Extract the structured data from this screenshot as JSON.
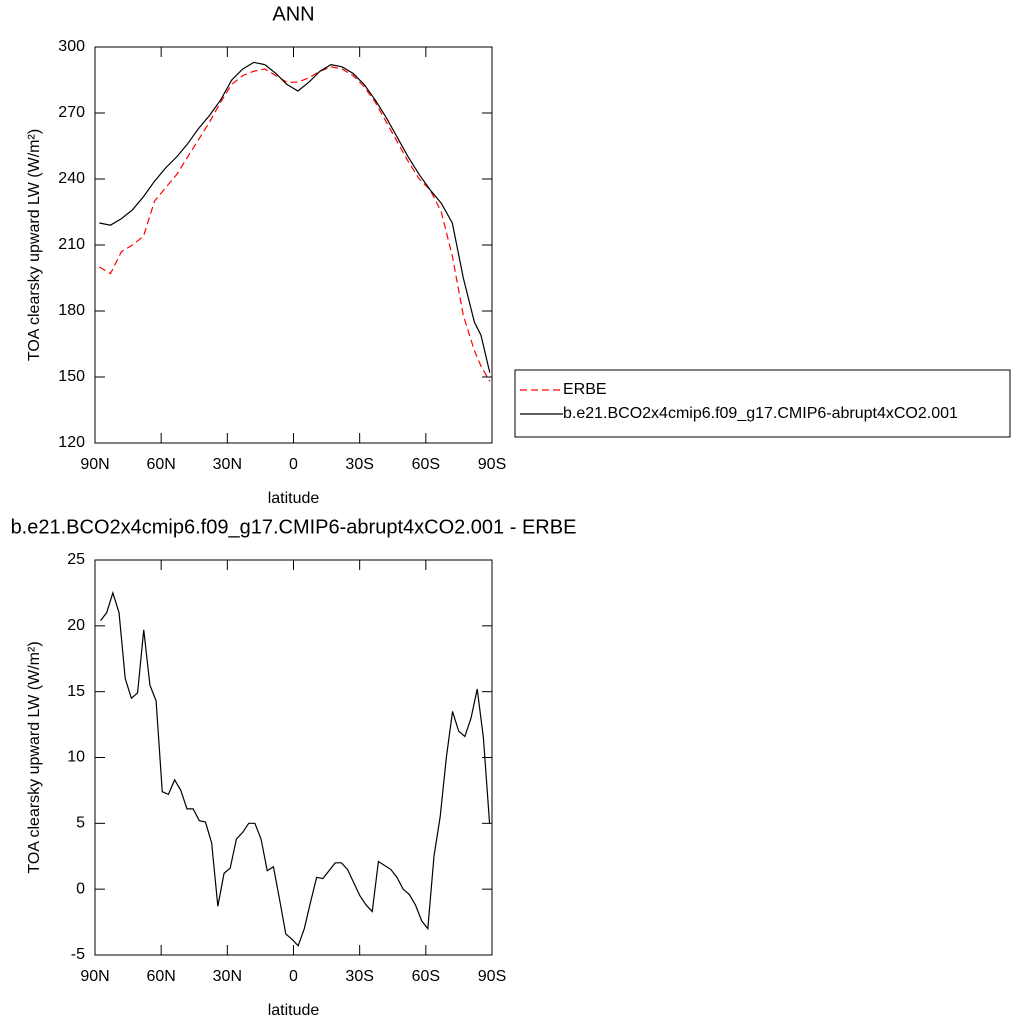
{
  "chart_data": [
    {
      "type": "line",
      "title": "ANN",
      "x_label": "latitude",
      "y_label": "TOA clearsky upward LW (W/m²)",
      "x": [
        88,
        83,
        78,
        73,
        68,
        63,
        58,
        53,
        48,
        43,
        38,
        33,
        28,
        23,
        18,
        13,
        8,
        3,
        -2,
        -7,
        -12,
        -17,
        -22,
        -27,
        -32,
        -37,
        -42,
        -47,
        -52,
        -57,
        -62,
        -67,
        -72,
        -77,
        -82,
        -85,
        -89
      ],
      "series": [
        {
          "name": "ERBE",
          "color": "#ff0000",
          "dashed": true,
          "values": [
            200,
            197,
            207,
            210,
            214,
            230,
            236,
            242,
            250,
            258,
            266,
            275,
            283,
            287,
            289,
            290,
            287,
            284,
            284,
            286,
            289,
            291,
            290,
            287,
            282,
            275,
            266,
            257,
            248,
            240,
            235,
            225,
            205,
            178,
            162,
            155,
            148
          ]
        },
        {
          "name": "b.e21.BCO2x4cmip6.f09_g17.CMIP6-abrupt4xCO2.001",
          "color": "#000000",
          "dashed": false,
          "values": [
            220,
            219,
            222,
            226,
            232,
            239,
            245,
            250,
            256,
            263,
            269,
            276,
            285,
            290,
            293,
            292,
            288,
            283,
            280,
            284,
            289,
            292,
            291,
            288,
            283,
            276,
            268,
            259,
            250,
            242,
            235,
            229,
            220,
            195,
            175,
            169,
            152
          ]
        }
      ],
      "xlim": [
        90,
        -90
      ],
      "xticks": [
        {
          "value": 90,
          "label": "90N"
        },
        {
          "value": 60,
          "label": "60N"
        },
        {
          "value": 30,
          "label": "30N"
        },
        0,
        {
          "value": -30,
          "label": "30S"
        },
        {
          "value": -60,
          "label": "60S"
        },
        {
          "value": -90,
          "label": "90S"
        }
      ],
      "ylim": [
        120,
        300
      ],
      "yticks": [
        120,
        150,
        180,
        210,
        240,
        270,
        300
      ],
      "legend": "right"
    },
    {
      "type": "line",
      "title": "b.e21.BCO2x4cmip6.f09_g17.CMIP6-abrupt4xCO2.001 - ERBE",
      "x_label": "latitude",
      "y_label": "TOA clearsky upward LW (W/m²)",
      "x": [
        87.5,
        84.7,
        81.9,
        79.1,
        76.3,
        73.5,
        70.7,
        67.9,
        65.1,
        62.3,
        59.5,
        56.7,
        53.9,
        51.1,
        48.3,
        45.5,
        42.7,
        39.9,
        37.1,
        34.3,
        31.5,
        28.7,
        25.9,
        23.1,
        20.3,
        17.5,
        14.7,
        11.9,
        9.1,
        6.3,
        3.5,
        0.7,
        -2.1,
        -4.9,
        -7.7,
        -10.5,
        -13.3,
        -16.1,
        -18.9,
        -21.7,
        -24.5,
        -27.3,
        -30.1,
        -32.9,
        -35.7,
        -38.5,
        -41.3,
        -44.1,
        -46.9,
        -49.7,
        -52.5,
        -55.3,
        -58.1,
        -60.9,
        -63.7,
        -66.5,
        -69.3,
        -72.1,
        -74.9,
        -77.7,
        -80.5,
        -83.3,
        -86.1,
        -88.9
      ],
      "series": [
        {
          "color": "#000000",
          "dashed": false,
          "values": [
            20.4,
            21,
            22.5,
            21,
            16,
            14.5,
            14.9,
            19.7,
            15.5,
            14.3,
            7.4,
            7.2,
            8.3,
            7.5,
            6.1,
            6.1,
            5.2,
            5.1,
            3.5,
            -1.3,
            1.2,
            1.6,
            3.8,
            4.3,
            5.0,
            5.0,
            3.8,
            1.4,
            1.7,
            -0.8,
            -3.4,
            -3.8,
            -4.3,
            -3.0,
            -1.0,
            0.9,
            0.8,
            1.4,
            2.0,
            2.0,
            1.5,
            0.5,
            -0.5,
            -1.2,
            -1.7,
            2.1,
            1.8,
            1.5,
            0.9,
            0,
            -0.4,
            -1.2,
            -2.4,
            -3.0,
            2.5,
            5.5,
            10,
            13.5,
            12.0,
            11.6,
            13.0,
            15.2,
            11.5,
            5.0
          ]
        }
      ],
      "xlim": [
        90,
        -90
      ],
      "xticks": [
        {
          "value": 90,
          "label": "90N"
        },
        {
          "value": 60,
          "label": "60N"
        },
        {
          "value": 30,
          "label": "30N"
        },
        0,
        {
          "value": -30,
          "label": "30S"
        },
        {
          "value": -60,
          "label": "60S"
        },
        {
          "value": -90,
          "label": "90S"
        }
      ],
      "ylim": [
        -5,
        25
      ],
      "yticks": [
        -5,
        0,
        5,
        10,
        15,
        20,
        25
      ]
    }
  ]
}
